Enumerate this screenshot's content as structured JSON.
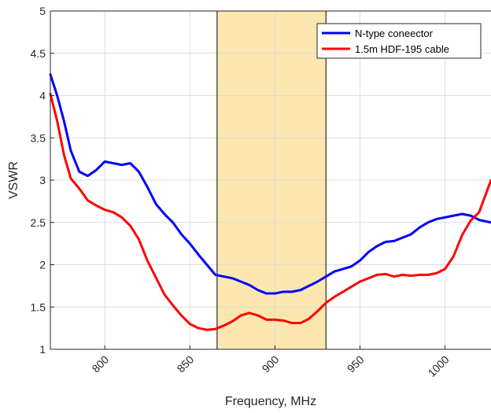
{
  "chart_data": {
    "type": "line",
    "xlabel": "Frequency, MHz",
    "ylabel": "VSWR",
    "xlim": [
      768,
      1027
    ],
    "ylim": [
      1,
      5
    ],
    "xticks": [
      800,
      850,
      900,
      950,
      1000
    ],
    "yticks": [
      1,
      1.5,
      2,
      2.5,
      3,
      3.5,
      4,
      4.5,
      5
    ],
    "xtick_labels": [
      "800",
      "850",
      "900",
      "950",
      "1000"
    ],
    "ytick_labels": [
      "1",
      "1.5",
      "2",
      "2.5",
      "3",
      "3.5",
      "4",
      "4.5",
      "5"
    ],
    "grid": true,
    "legend_position": "top-right",
    "highlight_band": {
      "x_start": 866,
      "x_end": 930,
      "color": "#fde7b0"
    },
    "series": [
      {
        "name": "N-type coneector",
        "color": "#0000ff",
        "x": [
          768,
          772,
          776,
          780,
          785,
          790,
          795,
          800,
          805,
          810,
          815,
          820,
          825,
          830,
          835,
          840,
          845,
          850,
          855,
          860,
          865,
          870,
          875,
          880,
          885,
          890,
          895,
          900,
          905,
          910,
          915,
          920,
          925,
          930,
          935,
          940,
          945,
          950,
          955,
          960,
          965,
          970,
          975,
          980,
          985,
          990,
          995,
          1000,
          1005,
          1010,
          1015,
          1020,
          1027
        ],
        "y": [
          4.25,
          4.0,
          3.7,
          3.35,
          3.1,
          3.05,
          3.12,
          3.22,
          3.2,
          3.18,
          3.2,
          3.1,
          2.92,
          2.72,
          2.6,
          2.5,
          2.36,
          2.25,
          2.12,
          2.0,
          1.88,
          1.86,
          1.84,
          1.8,
          1.76,
          1.7,
          1.66,
          1.66,
          1.68,
          1.68,
          1.7,
          1.75,
          1.8,
          1.86,
          1.92,
          1.95,
          1.98,
          2.05,
          2.15,
          2.22,
          2.27,
          2.28,
          2.32,
          2.36,
          2.44,
          2.5,
          2.54,
          2.56,
          2.58,
          2.6,
          2.58,
          2.53,
          2.5
        ]
      },
      {
        "name": "1.5m HDF-195 cable",
        "color": "#ff0000",
        "x": [
          768,
          772,
          776,
          780,
          785,
          790,
          795,
          800,
          805,
          810,
          815,
          820,
          825,
          830,
          835,
          840,
          845,
          850,
          855,
          860,
          865,
          870,
          875,
          880,
          885,
          890,
          895,
          900,
          905,
          910,
          915,
          920,
          925,
          930,
          935,
          940,
          945,
          950,
          955,
          960,
          965,
          970,
          975,
          980,
          985,
          990,
          995,
          1000,
          1005,
          1010,
          1015,
          1020,
          1027
        ],
        "y": [
          4.02,
          3.7,
          3.3,
          3.02,
          2.9,
          2.76,
          2.7,
          2.65,
          2.62,
          2.56,
          2.46,
          2.3,
          2.05,
          1.85,
          1.65,
          1.52,
          1.4,
          1.3,
          1.25,
          1.23,
          1.24,
          1.28,
          1.33,
          1.4,
          1.43,
          1.4,
          1.35,
          1.35,
          1.34,
          1.31,
          1.31,
          1.36,
          1.45,
          1.55,
          1.62,
          1.68,
          1.74,
          1.8,
          1.84,
          1.88,
          1.89,
          1.86,
          1.88,
          1.87,
          1.88,
          1.88,
          1.9,
          1.95,
          2.1,
          2.35,
          2.52,
          2.62,
          3.0
        ]
      }
    ]
  }
}
